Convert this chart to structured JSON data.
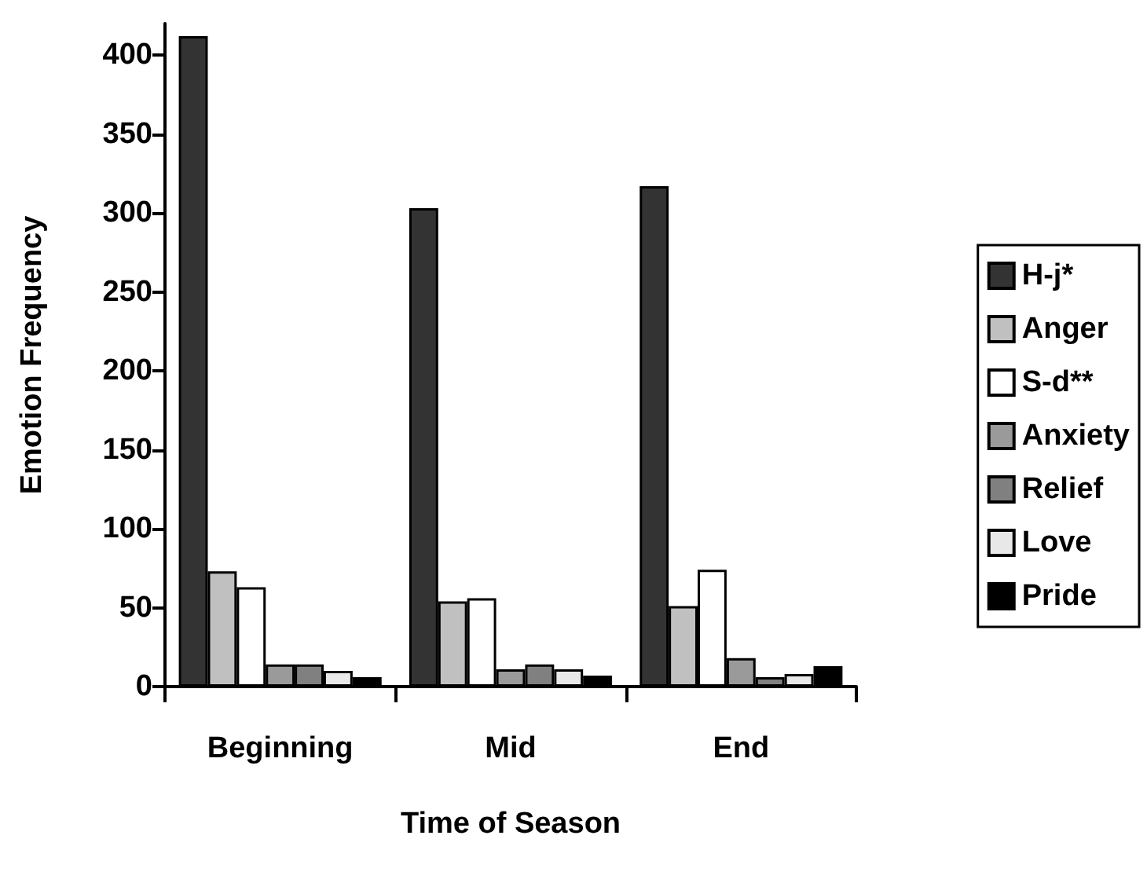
{
  "chart_data": {
    "type": "bar",
    "xlabel": "Time of Season",
    "ylabel": "Emotion Frequency",
    "categories": [
      "Beginning",
      "Mid",
      "End"
    ],
    "series": [
      {
        "name": "H-j*",
        "color": "#333333",
        "values": [
          412,
          303,
          317
        ]
      },
      {
        "name": "Anger",
        "color": "#c0c0c0",
        "values": [
          73,
          54,
          51
        ]
      },
      {
        "name": "S-d**",
        "color": "#ffffff",
        "values": [
          63,
          56,
          74
        ]
      },
      {
        "name": "Anxiety",
        "color": "#9a9a9a",
        "values": [
          14,
          11,
          18
        ]
      },
      {
        "name": "Relief",
        "color": "#808080",
        "values": [
          14,
          14,
          6
        ]
      },
      {
        "name": "Love",
        "color": "#e8e8e8",
        "values": [
          10,
          11,
          8
        ]
      },
      {
        "name": "Pride",
        "color": "#000000",
        "values": [
          6,
          7,
          13
        ]
      }
    ],
    "ylim": [
      0,
      420
    ],
    "yticks": [
      0,
      50,
      100,
      150,
      200,
      250,
      300,
      350,
      400
    ],
    "grid": false,
    "legend": "right"
  }
}
